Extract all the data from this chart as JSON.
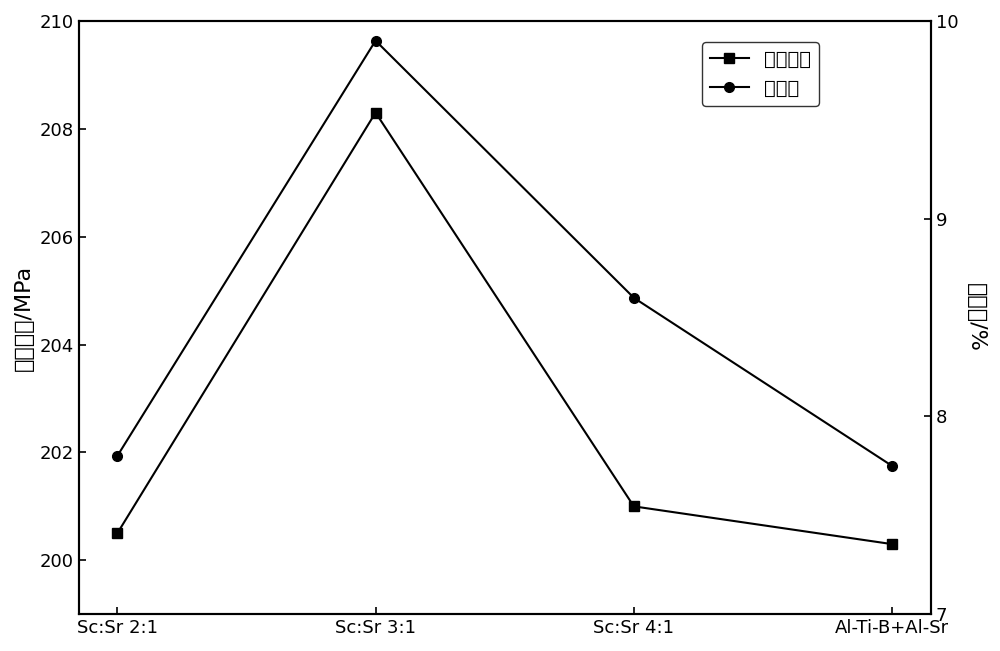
{
  "categories": [
    "Sc:Sr 2:1",
    "Sc:Sr 3:1",
    "Sc:Sr 4:1",
    "Al-Ti-B+Al-Sr"
  ],
  "tensile_strength": [
    200.5,
    208.3,
    201.0,
    200.3
  ],
  "elongation": [
    7.8,
    9.9,
    8.6,
    7.75
  ],
  "tensile_label": "抗拉强度",
  "elongation_label": "延伸率",
  "ylabel_left": "抗拉强度/MPa",
  "ylabel_right": "延伸率/%",
  "ylim_left": [
    199,
    210
  ],
  "ylim_right": [
    7,
    10
  ],
  "yticks_left": [
    200,
    202,
    204,
    206,
    208,
    210
  ],
  "yticks_right": [
    7,
    8,
    9,
    10
  ],
  "line_color": "#000000",
  "marker_square": "s",
  "marker_circle": "o",
  "marker_size": 7,
  "line_width": 1.5,
  "legend_loc": "upper right",
  "background_color": "#ffffff",
  "font_size": 14,
  "tick_font_size": 13,
  "label_fontsize": 16
}
